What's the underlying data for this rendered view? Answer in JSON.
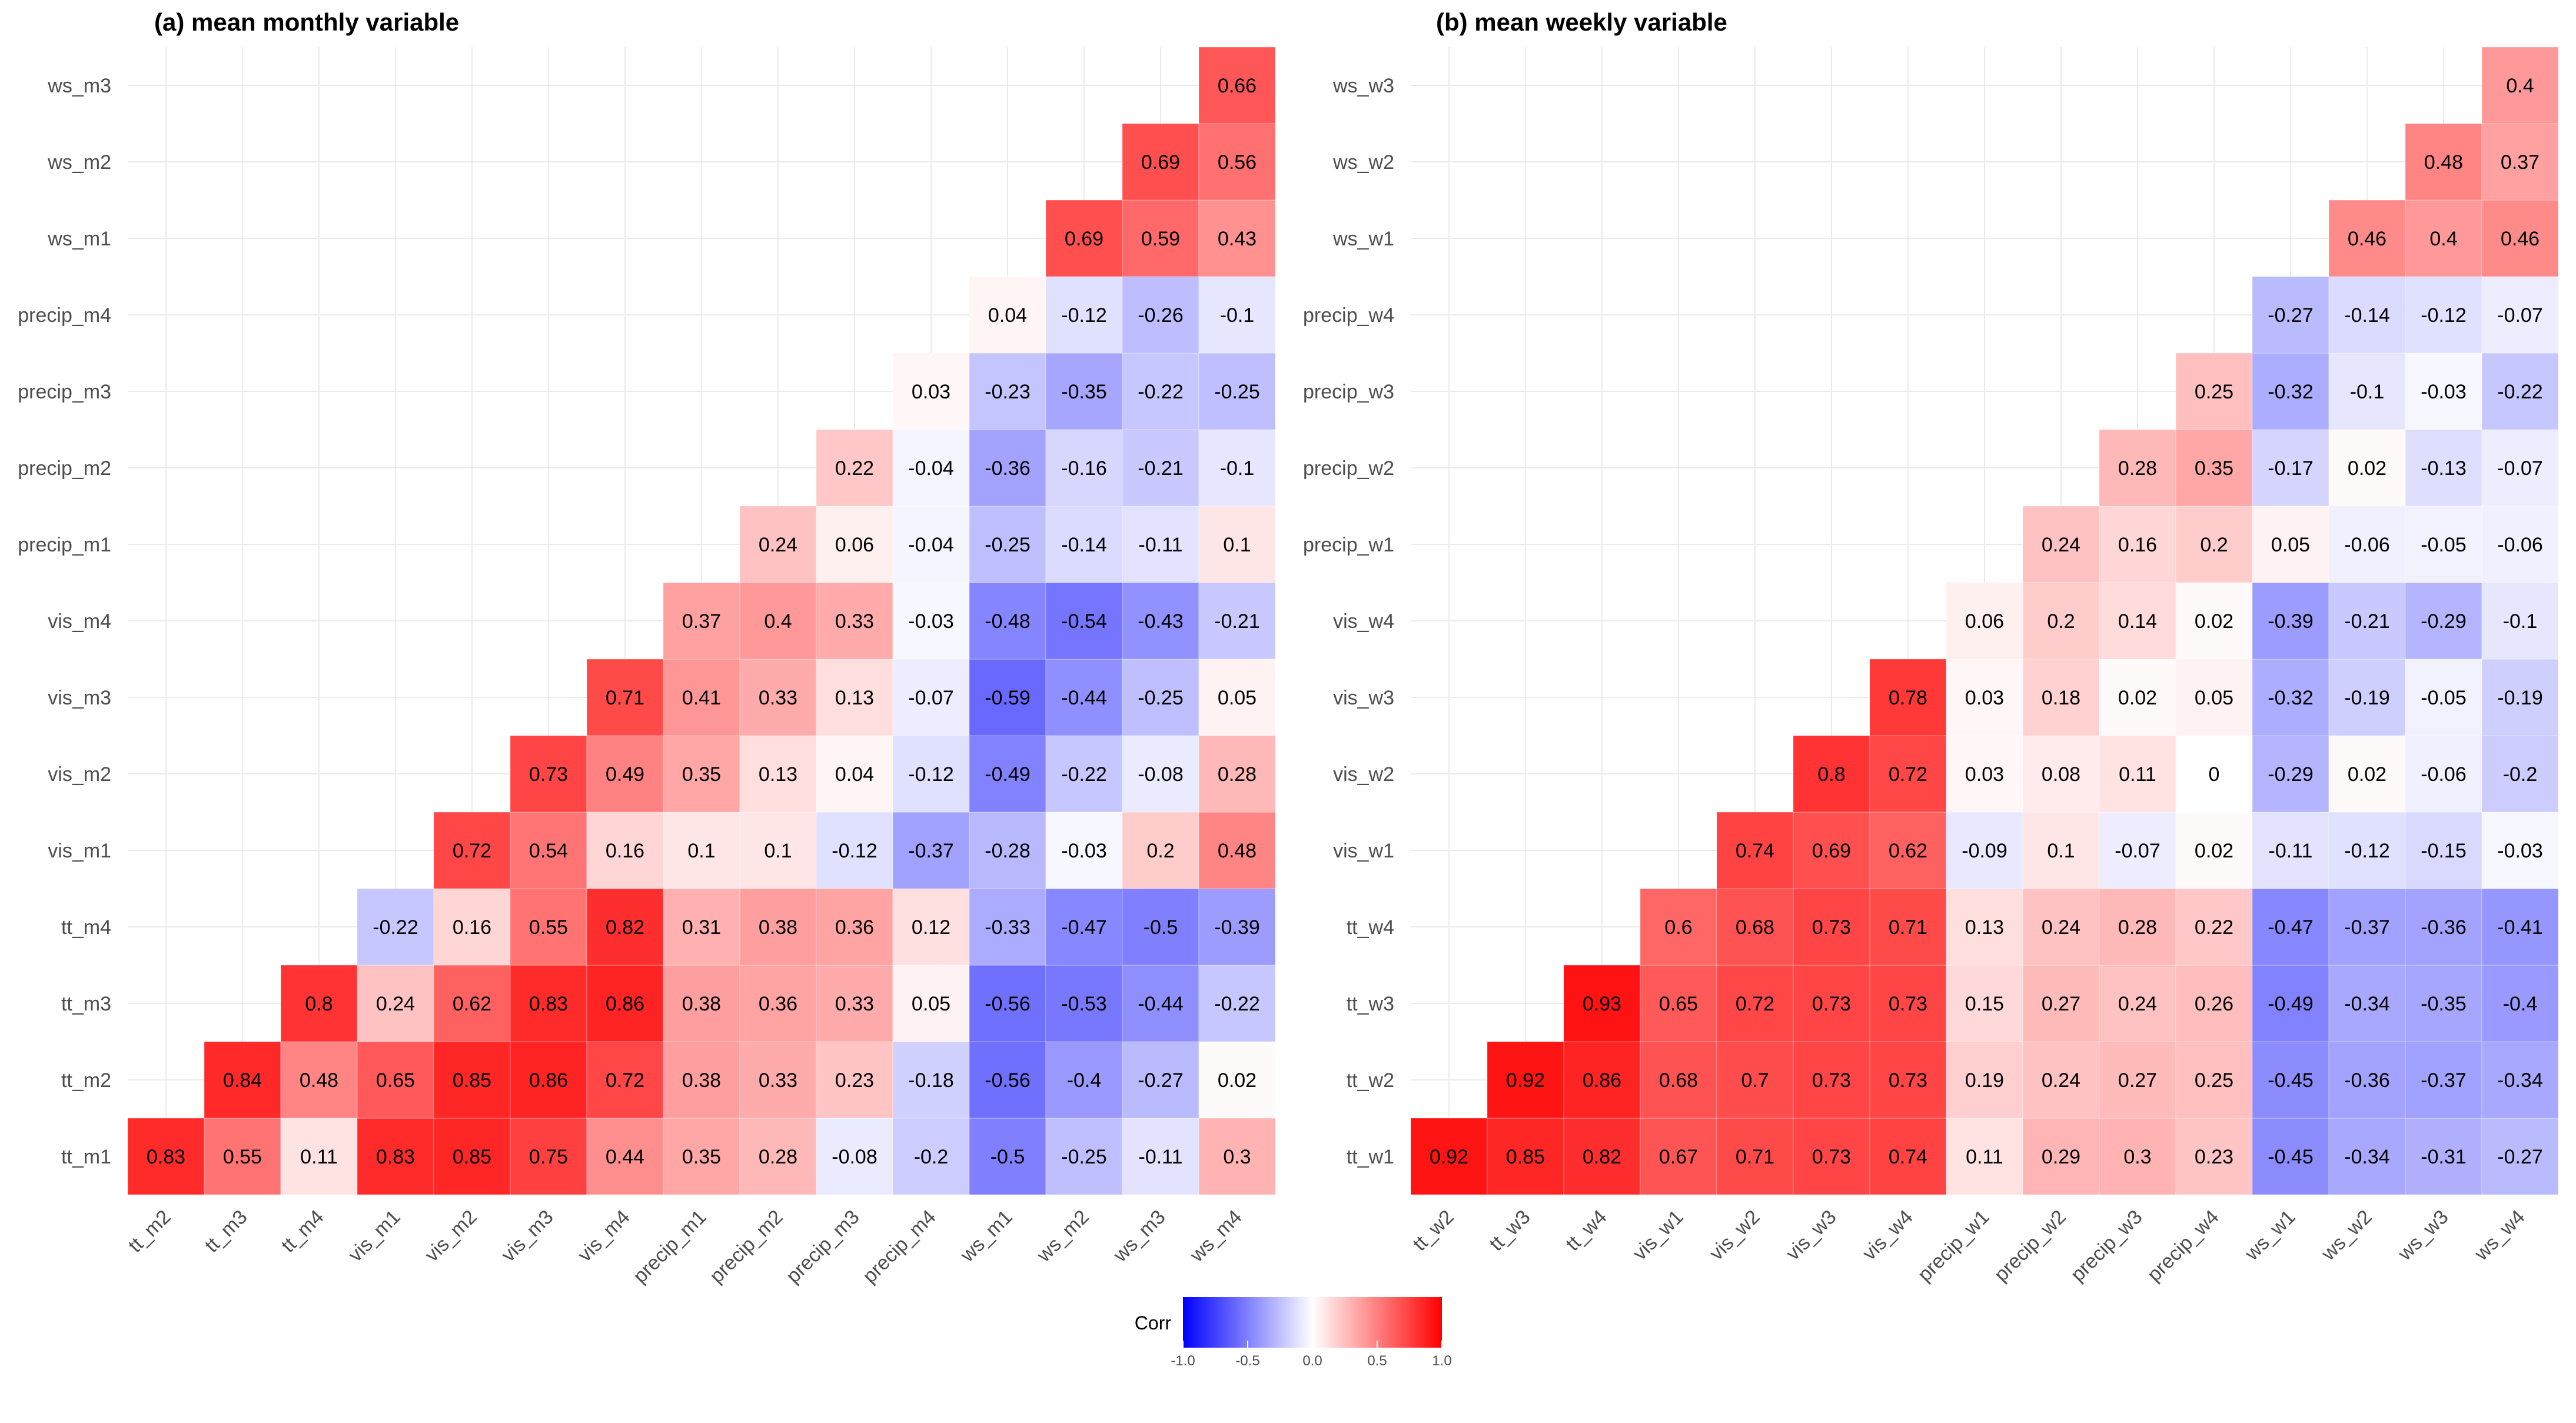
{
  "chart_data": [
    {
      "type": "heatmap",
      "title": "(a) mean monthly variable",
      "x_labels": [
        "tt_m2",
        "tt_m3",
        "tt_m4",
        "vis_m1",
        "vis_m2",
        "vis_m3",
        "vis_m4",
        "precip_m1",
        "precip_m2",
        "precip_m3",
        "precip_m4",
        "ws_m1",
        "ws_m2",
        "ws_m3",
        "ws_m4"
      ],
      "y_labels": [
        "tt_m1",
        "tt_m2",
        "tt_m3",
        "tt_m4",
        "vis_m1",
        "vis_m2",
        "vis_m3",
        "vis_m4",
        "precip_m1",
        "precip_m2",
        "precip_m3",
        "precip_m4",
        "ws_m1",
        "ws_m2",
        "ws_m3"
      ],
      "values": [
        [
          0.83,
          0.55,
          0.11,
          0.83,
          0.85,
          0.75,
          0.44,
          0.35,
          0.28,
          -0.08,
          -0.2,
          -0.5,
          -0.25,
          -0.11,
          0.3
        ],
        [
          null,
          0.84,
          0.48,
          0.65,
          0.85,
          0.86,
          0.72,
          0.38,
          0.33,
          0.23,
          -0.18,
          -0.56,
          -0.4,
          -0.27,
          0.02
        ],
        [
          null,
          null,
          0.8,
          0.24,
          0.62,
          0.83,
          0.86,
          0.38,
          0.36,
          0.33,
          0.05,
          -0.56,
          -0.53,
          -0.44,
          -0.22
        ],
        [
          null,
          null,
          null,
          -0.22,
          0.16,
          0.55,
          0.82,
          0.31,
          0.38,
          0.36,
          0.12,
          -0.33,
          -0.47,
          -0.5,
          -0.39
        ],
        [
          null,
          null,
          null,
          null,
          0.72,
          0.54,
          0.16,
          0.1,
          0.1,
          -0.12,
          -0.37,
          -0.28,
          -0.03,
          0.2,
          0.48
        ],
        [
          null,
          null,
          null,
          null,
          null,
          0.73,
          0.49,
          0.35,
          0.13,
          0.04,
          -0.12,
          -0.49,
          -0.22,
          -0.08,
          0.28
        ],
        [
          null,
          null,
          null,
          null,
          null,
          null,
          0.71,
          0.41,
          0.33,
          0.13,
          -0.07,
          -0.59,
          -0.44,
          -0.25,
          0.05
        ],
        [
          null,
          null,
          null,
          null,
          null,
          null,
          null,
          0.37,
          0.4,
          0.33,
          -0.03,
          -0.48,
          -0.54,
          -0.43,
          -0.21
        ],
        [
          null,
          null,
          null,
          null,
          null,
          null,
          null,
          null,
          0.24,
          0.06,
          -0.04,
          -0.25,
          -0.14,
          -0.11,
          0.1
        ],
        [
          null,
          null,
          null,
          null,
          null,
          null,
          null,
          null,
          null,
          0.22,
          -0.04,
          -0.36,
          -0.16,
          -0.21,
          -0.1
        ],
        [
          null,
          null,
          null,
          null,
          null,
          null,
          null,
          null,
          null,
          null,
          0.03,
          -0.23,
          -0.35,
          -0.22,
          -0.25
        ],
        [
          null,
          null,
          null,
          null,
          null,
          null,
          null,
          null,
          null,
          null,
          null,
          0.04,
          -0.12,
          -0.26,
          -0.1
        ],
        [
          null,
          null,
          null,
          null,
          null,
          null,
          null,
          null,
          null,
          null,
          null,
          null,
          0.69,
          0.59,
          0.43
        ],
        [
          null,
          null,
          null,
          null,
          null,
          null,
          null,
          null,
          null,
          null,
          null,
          null,
          null,
          0.69,
          0.56
        ],
        [
          null,
          null,
          null,
          null,
          null,
          null,
          null,
          null,
          null,
          null,
          null,
          null,
          null,
          null,
          0.66
        ]
      ]
    },
    {
      "type": "heatmap",
      "title": "(b) mean weekly variable",
      "x_labels": [
        "tt_w2",
        "tt_w3",
        "tt_w4",
        "vis_w1",
        "vis_w2",
        "vis_w3",
        "vis_w4",
        "precip_w1",
        "precip_w2",
        "precip_w3",
        "precip_w4",
        "ws_w1",
        "ws_w2",
        "ws_w3",
        "ws_w4"
      ],
      "y_labels": [
        "tt_w1",
        "tt_w2",
        "tt_w3",
        "tt_w4",
        "vis_w1",
        "vis_w2",
        "vis_w3",
        "vis_w4",
        "precip_w1",
        "precip_w2",
        "precip_w3",
        "precip_w4",
        "ws_w1",
        "ws_w2",
        "ws_w3"
      ],
      "values": [
        [
          0.92,
          0.85,
          0.82,
          0.67,
          0.71,
          0.73,
          0.74,
          0.11,
          0.29,
          0.3,
          0.23,
          -0.45,
          -0.34,
          -0.31,
          -0.27
        ],
        [
          null,
          0.92,
          0.86,
          0.68,
          0.7,
          0.73,
          0.73,
          0.19,
          0.24,
          0.27,
          0.25,
          -0.45,
          -0.36,
          -0.37,
          -0.34
        ],
        [
          null,
          null,
          0.93,
          0.65,
          0.72,
          0.73,
          0.73,
          0.15,
          0.27,
          0.24,
          0.26,
          -0.49,
          -0.34,
          -0.35,
          -0.4
        ],
        [
          null,
          null,
          null,
          0.6,
          0.68,
          0.73,
          0.71,
          0.13,
          0.24,
          0.28,
          0.22,
          -0.47,
          -0.37,
          -0.36,
          -0.41
        ],
        [
          null,
          null,
          null,
          null,
          0.74,
          0.69,
          0.62,
          -0.09,
          0.1,
          -0.07,
          0.02,
          -0.11,
          -0.12,
          -0.15,
          -0.03
        ],
        [
          null,
          null,
          null,
          null,
          null,
          0.8,
          0.72,
          0.03,
          0.08,
          0.11,
          0,
          -0.29,
          0.02,
          -0.06,
          -0.2
        ],
        [
          null,
          null,
          null,
          null,
          null,
          null,
          0.78,
          0.03,
          0.18,
          0.02,
          0.05,
          -0.32,
          -0.19,
          -0.05,
          -0.19
        ],
        [
          null,
          null,
          null,
          null,
          null,
          null,
          null,
          0.06,
          0.2,
          0.14,
          0.02,
          -0.39,
          -0.21,
          -0.29,
          -0.1
        ],
        [
          null,
          null,
          null,
          null,
          null,
          null,
          null,
          null,
          0.24,
          0.16,
          0.2,
          0.05,
          -0.06,
          -0.05,
          -0.06
        ],
        [
          null,
          null,
          null,
          null,
          null,
          null,
          null,
          null,
          null,
          0.28,
          0.35,
          -0.17,
          0.02,
          -0.13,
          -0.07
        ],
        [
          null,
          null,
          null,
          null,
          null,
          null,
          null,
          null,
          null,
          null,
          0.25,
          -0.32,
          -0.1,
          -0.03,
          -0.22
        ],
        [
          null,
          null,
          null,
          null,
          null,
          null,
          null,
          null,
          null,
          null,
          null,
          -0.27,
          -0.14,
          -0.12,
          -0.07
        ],
        [
          null,
          null,
          null,
          null,
          null,
          null,
          null,
          null,
          null,
          null,
          null,
          null,
          0.46,
          0.4,
          0.46
        ],
        [
          null,
          null,
          null,
          null,
          null,
          null,
          null,
          null,
          null,
          null,
          null,
          null,
          null,
          0.48,
          0.37
        ],
        [
          null,
          null,
          null,
          null,
          null,
          null,
          null,
          null,
          null,
          null,
          null,
          null,
          null,
          null,
          0.4
        ]
      ]
    }
  ],
  "legend": {
    "title": "Corr",
    "ticks": [
      "-1.0",
      "-0.5",
      "0.0",
      "0.5",
      "1.0"
    ],
    "range": [
      -1,
      1
    ],
    "colors": {
      "low": "#0000ff",
      "mid": "#ffffff",
      "high": "#ff0000"
    }
  }
}
